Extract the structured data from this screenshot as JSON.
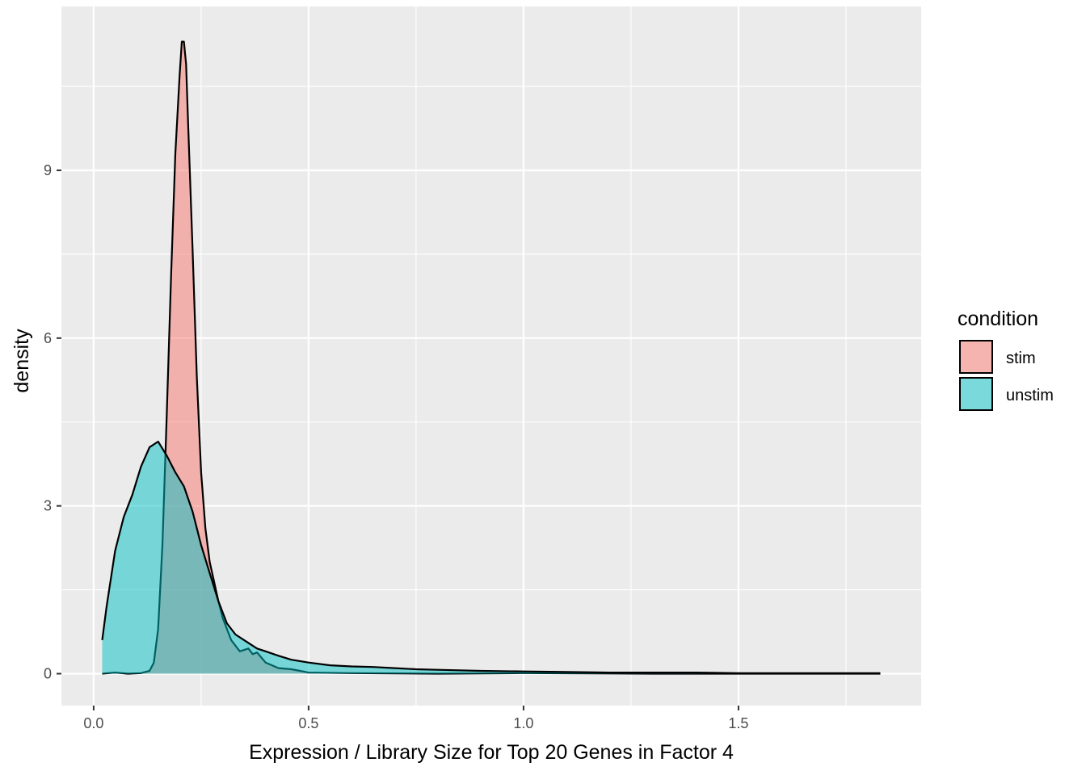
{
  "chart_data": {
    "type": "area",
    "title": "",
    "xlabel": "Expression / Library Size for Top 20 Genes in Factor 4",
    "ylabel": "density",
    "xlim": [
      -0.075,
      1.925
    ],
    "ylim": [
      -0.57,
      11.93
    ],
    "x_ticks": [
      0.0,
      0.5,
      1.0,
      1.5
    ],
    "x_tick_labels": [
      "0.0",
      "0.5",
      "1.0",
      "1.5"
    ],
    "y_ticks": [
      0,
      3,
      6,
      9
    ],
    "y_tick_labels": [
      "0",
      "3",
      "6",
      "9"
    ],
    "grid": true,
    "legend": {
      "title": "condition",
      "position": "right"
    },
    "series": [
      {
        "name": "stim",
        "color": "#F8766D",
        "points": [
          [
            0.02,
            0.0
          ],
          [
            0.05,
            0.02
          ],
          [
            0.08,
            0.0
          ],
          [
            0.11,
            0.01
          ],
          [
            0.13,
            0.05
          ],
          [
            0.14,
            0.2
          ],
          [
            0.15,
            0.8
          ],
          [
            0.16,
            2.3
          ],
          [
            0.17,
            4.6
          ],
          [
            0.18,
            7.1
          ],
          [
            0.19,
            9.3
          ],
          [
            0.2,
            10.7
          ],
          [
            0.205,
            11.3
          ],
          [
            0.21,
            11.3
          ],
          [
            0.215,
            10.9
          ],
          [
            0.22,
            9.8
          ],
          [
            0.23,
            7.6
          ],
          [
            0.24,
            5.3
          ],
          [
            0.25,
            3.6
          ],
          [
            0.26,
            2.6
          ],
          [
            0.27,
            2.0
          ],
          [
            0.28,
            1.65
          ],
          [
            0.29,
            1.3
          ],
          [
            0.3,
            1.0
          ],
          [
            0.32,
            0.6
          ],
          [
            0.34,
            0.4
          ],
          [
            0.36,
            0.45
          ],
          [
            0.37,
            0.35
          ],
          [
            0.38,
            0.38
          ],
          [
            0.4,
            0.2
          ],
          [
            0.43,
            0.1
          ],
          [
            0.46,
            0.08
          ],
          [
            0.48,
            0.05
          ],
          [
            0.5,
            0.02
          ],
          [
            0.6,
            0.01
          ],
          [
            0.8,
            0.0
          ],
          [
            1.0,
            0.01
          ],
          [
            1.3,
            0.0
          ],
          [
            1.6,
            0.0
          ],
          [
            1.83,
            0.0
          ]
        ]
      },
      {
        "name": "unstim",
        "color": "#00BFC4",
        "points": [
          [
            0.02,
            0.6
          ],
          [
            0.03,
            1.2
          ],
          [
            0.05,
            2.2
          ],
          [
            0.07,
            2.8
          ],
          [
            0.09,
            3.2
          ],
          [
            0.11,
            3.7
          ],
          [
            0.13,
            4.05
          ],
          [
            0.15,
            4.15
          ],
          [
            0.17,
            3.9
          ],
          [
            0.19,
            3.6
          ],
          [
            0.21,
            3.35
          ],
          [
            0.23,
            2.9
          ],
          [
            0.25,
            2.3
          ],
          [
            0.27,
            1.8
          ],
          [
            0.29,
            1.3
          ],
          [
            0.31,
            0.9
          ],
          [
            0.33,
            0.7
          ],
          [
            0.35,
            0.6
          ],
          [
            0.38,
            0.45
          ],
          [
            0.4,
            0.4
          ],
          [
            0.43,
            0.32
          ],
          [
            0.46,
            0.25
          ],
          [
            0.5,
            0.2
          ],
          [
            0.55,
            0.15
          ],
          [
            0.6,
            0.13
          ],
          [
            0.65,
            0.12
          ],
          [
            0.7,
            0.1
          ],
          [
            0.75,
            0.08
          ],
          [
            0.8,
            0.07
          ],
          [
            0.9,
            0.05
          ],
          [
            1.0,
            0.04
          ],
          [
            1.1,
            0.03
          ],
          [
            1.2,
            0.02
          ],
          [
            1.3,
            0.02
          ],
          [
            1.4,
            0.02
          ],
          [
            1.5,
            0.01
          ],
          [
            1.6,
            0.01
          ],
          [
            1.7,
            0.01
          ],
          [
            1.83,
            0.01
          ]
        ]
      }
    ]
  }
}
